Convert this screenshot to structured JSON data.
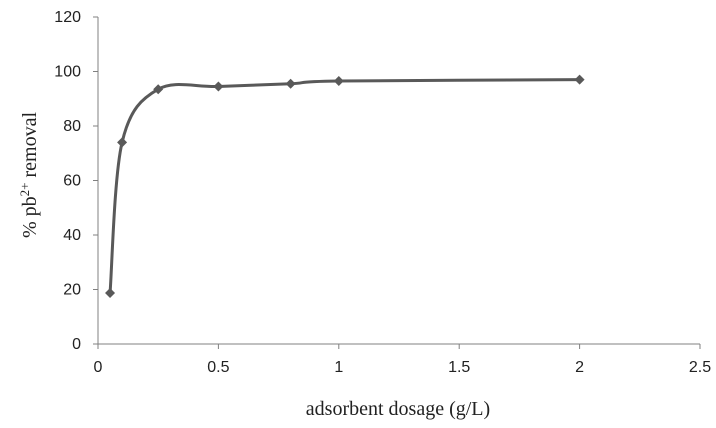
{
  "chart_data": {
    "type": "line",
    "smooth": true,
    "marker": "diamond",
    "xlabel": "adsorbent dosage (g/L)",
    "ylabel": {
      "prefix": "% ",
      "base": "pb",
      "superscript": "2+",
      "suffix": " removal"
    },
    "xlim": [
      0,
      2.5
    ],
    "ylim": [
      0,
      120
    ],
    "xticks": [
      "0",
      "0.5",
      "1",
      "1.5",
      "2",
      "2.5"
    ],
    "yticks": [
      "0",
      "20",
      "40",
      "60",
      "80",
      "100",
      "120"
    ],
    "grid": false,
    "legend": "none",
    "series": [
      {
        "x": [
          0.05,
          0.1,
          0.25,
          0.5,
          0.8,
          1,
          2
        ],
        "y": [
          18.7,
          74,
          93.5,
          94.5,
          95.5,
          96.5,
          97
        ]
      }
    ],
    "colors": {
      "line": "#595959",
      "marker": "#595959",
      "axis": "#808080"
    }
  }
}
